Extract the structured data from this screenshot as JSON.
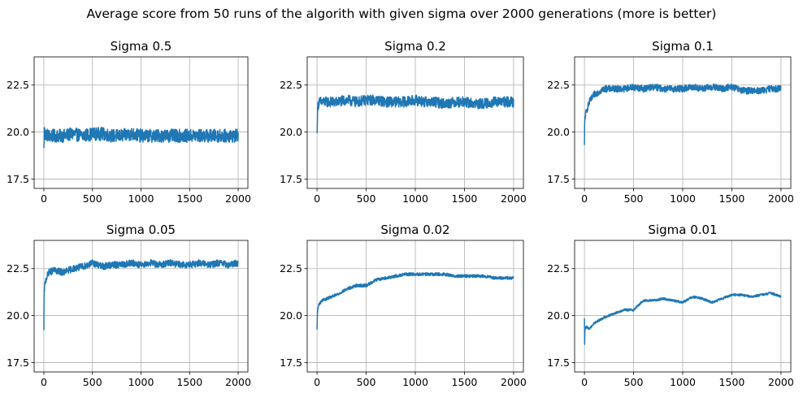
{
  "suptitle": "Average score from 50 runs of the algorith with given sigma over 2000 generations (more is better)",
  "colors": {
    "line": "#1f77b4",
    "grid": "#b0b0b0",
    "axis": "#000000"
  },
  "chart_data": [
    {
      "type": "line",
      "title": "Sigma 0.5",
      "xlim": [
        -100,
        2100
      ],
      "ylim": [
        17.0,
        24.0
      ],
      "xticks": [
        0,
        500,
        1000,
        1500,
        2000
      ],
      "yticks": [
        17.5,
        20.0,
        22.5
      ],
      "grid": true,
      "series": [
        {
          "x": [
            0,
            2,
            5,
            10,
            20,
            50,
            100,
            200,
            300,
            400,
            500,
            600,
            700,
            800,
            900,
            1000,
            1100,
            1200,
            1300,
            1400,
            1500,
            1600,
            1700,
            1800,
            1900,
            2000
          ],
          "y": [
            19.0,
            19.6,
            20.3,
            19.8,
            19.9,
            19.8,
            19.8,
            19.8,
            19.9,
            19.8,
            19.9,
            19.9,
            19.8,
            19.8,
            19.9,
            19.8,
            19.8,
            19.8,
            19.8,
            19.8,
            19.8,
            19.8,
            19.8,
            19.8,
            19.8,
            19.8
          ],
          "noise": 0.35
        }
      ]
    },
    {
      "type": "line",
      "title": "Sigma 0.2",
      "xlim": [
        -100,
        2100
      ],
      "ylim": [
        17.0,
        24.0
      ],
      "xticks": [
        0,
        500,
        1000,
        1500,
        2000
      ],
      "yticks": [
        17.5,
        20.0,
        22.5
      ],
      "grid": true,
      "series": [
        {
          "x": [
            0,
            2,
            5,
            10,
            20,
            50,
            100,
            200,
            300,
            400,
            500,
            600,
            700,
            800,
            900,
            1000,
            1100,
            1200,
            1300,
            1400,
            1500,
            1600,
            1700,
            1800,
            1900,
            2000
          ],
          "y": [
            19.8,
            20.5,
            21.0,
            21.4,
            21.6,
            21.6,
            21.6,
            21.6,
            21.7,
            21.6,
            21.7,
            21.7,
            21.6,
            21.6,
            21.6,
            21.7,
            21.6,
            21.6,
            21.5,
            21.6,
            21.6,
            21.5,
            21.5,
            21.6,
            21.6,
            21.6
          ],
          "noise": 0.28
        }
      ]
    },
    {
      "type": "line",
      "title": "Sigma 0.1",
      "xlim": [
        -100,
        2100
      ],
      "ylim": [
        17.0,
        24.0
      ],
      "xticks": [
        0,
        500,
        1000,
        1500,
        2000
      ],
      "yticks": [
        17.5,
        20.0,
        22.5
      ],
      "grid": true,
      "series": [
        {
          "x": [
            0,
            2,
            5,
            10,
            20,
            50,
            100,
            200,
            300,
            400,
            500,
            600,
            700,
            800,
            900,
            1000,
            1100,
            1200,
            1300,
            1400,
            1500,
            1600,
            1700,
            1800,
            1900,
            2000
          ],
          "y": [
            19.2,
            20.3,
            20.8,
            20.9,
            21.1,
            21.6,
            22.0,
            22.3,
            22.3,
            22.3,
            22.4,
            22.3,
            22.4,
            22.3,
            22.3,
            22.3,
            22.4,
            22.3,
            22.4,
            22.3,
            22.4,
            22.2,
            22.2,
            22.2,
            22.3,
            22.3
          ],
          "noise": 0.18
        }
      ]
    },
    {
      "type": "line",
      "title": "Sigma 0.05",
      "xlim": [
        -100,
        2100
      ],
      "ylim": [
        17.0,
        24.0
      ],
      "xticks": [
        0,
        500,
        1000,
        1500,
        2000
      ],
      "yticks": [
        17.5,
        20.0,
        22.5
      ],
      "grid": true,
      "series": [
        {
          "x": [
            0,
            2,
            5,
            10,
            20,
            50,
            100,
            200,
            300,
            400,
            500,
            600,
            700,
            800,
            900,
            1000,
            1100,
            1200,
            1300,
            1400,
            1500,
            1600,
            1700,
            1800,
            1900,
            2000
          ],
          "y": [
            19.1,
            20.8,
            21.4,
            21.6,
            21.9,
            22.3,
            22.4,
            22.3,
            22.5,
            22.6,
            22.8,
            22.6,
            22.7,
            22.7,
            22.8,
            22.7,
            22.8,
            22.7,
            22.8,
            22.7,
            22.7,
            22.8,
            22.7,
            22.8,
            22.7,
            22.8
          ],
          "noise": 0.18
        }
      ]
    },
    {
      "type": "line",
      "title": "Sigma 0.02",
      "xlim": [
        -100,
        2100
      ],
      "ylim": [
        17.0,
        24.0
      ],
      "xticks": [
        0,
        500,
        1000,
        1500,
        2000
      ],
      "yticks": [
        17.5,
        20.0,
        22.5
      ],
      "grid": true,
      "series": [
        {
          "x": [
            0,
            2,
            5,
            10,
            20,
            50,
            100,
            200,
            300,
            400,
            500,
            600,
            700,
            800,
            900,
            1000,
            1100,
            1200,
            1300,
            1400,
            1500,
            1600,
            1700,
            1800,
            1900,
            2000
          ],
          "y": [
            19.2,
            19.8,
            20.2,
            20.4,
            20.6,
            20.8,
            20.9,
            21.1,
            21.4,
            21.6,
            21.6,
            21.9,
            22.0,
            22.1,
            22.2,
            22.2,
            22.2,
            22.2,
            22.2,
            22.1,
            22.1,
            22.1,
            22.1,
            22.0,
            22.0,
            22.0
          ],
          "noise": 0.08
        }
      ]
    },
    {
      "type": "line",
      "title": "Sigma 0.01",
      "xlim": [
        -100,
        2100
      ],
      "ylim": [
        17.0,
        24.0
      ],
      "xticks": [
        0,
        500,
        1000,
        1500,
        2000
      ],
      "yticks": [
        17.5,
        20.0,
        22.5
      ],
      "grid": true,
      "series": [
        {
          "x": [
            0,
            2,
            5,
            10,
            20,
            50,
            100,
            200,
            300,
            400,
            500,
            600,
            700,
            800,
            900,
            1000,
            1100,
            1200,
            1300,
            1400,
            1500,
            1600,
            1700,
            1800,
            1900,
            2000
          ],
          "y": [
            19.8,
            18.5,
            19.4,
            19.3,
            19.4,
            19.3,
            19.6,
            19.9,
            20.1,
            20.3,
            20.3,
            20.8,
            20.8,
            20.9,
            20.8,
            20.7,
            21.0,
            20.9,
            20.7,
            20.9,
            21.1,
            21.1,
            21.0,
            21.1,
            21.2,
            21.0
          ],
          "noise": 0.06
        }
      ]
    }
  ]
}
